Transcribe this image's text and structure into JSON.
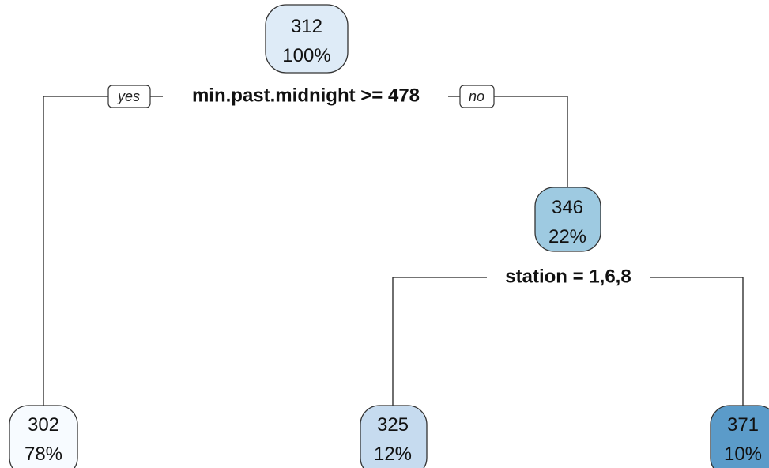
{
  "nodes": [
    {
      "value": "312",
      "percent": "100%",
      "color": "#deebf7"
    },
    {
      "value": "346",
      "percent": "22%",
      "color": "#9ecae1"
    },
    {
      "value": "302",
      "percent": "78%",
      "color": "#f7fbff"
    },
    {
      "value": "325",
      "percent": "12%",
      "color": "#c6dbef"
    },
    {
      "value": "371",
      "percent": "10%",
      "color": "#5b9bc9"
    }
  ],
  "splits": [
    {
      "label": "min.past.midnight >= 478"
    },
    {
      "label": "station = 1,6,8"
    }
  ],
  "branch_labels": {
    "yes": "yes",
    "no": "no"
  }
}
